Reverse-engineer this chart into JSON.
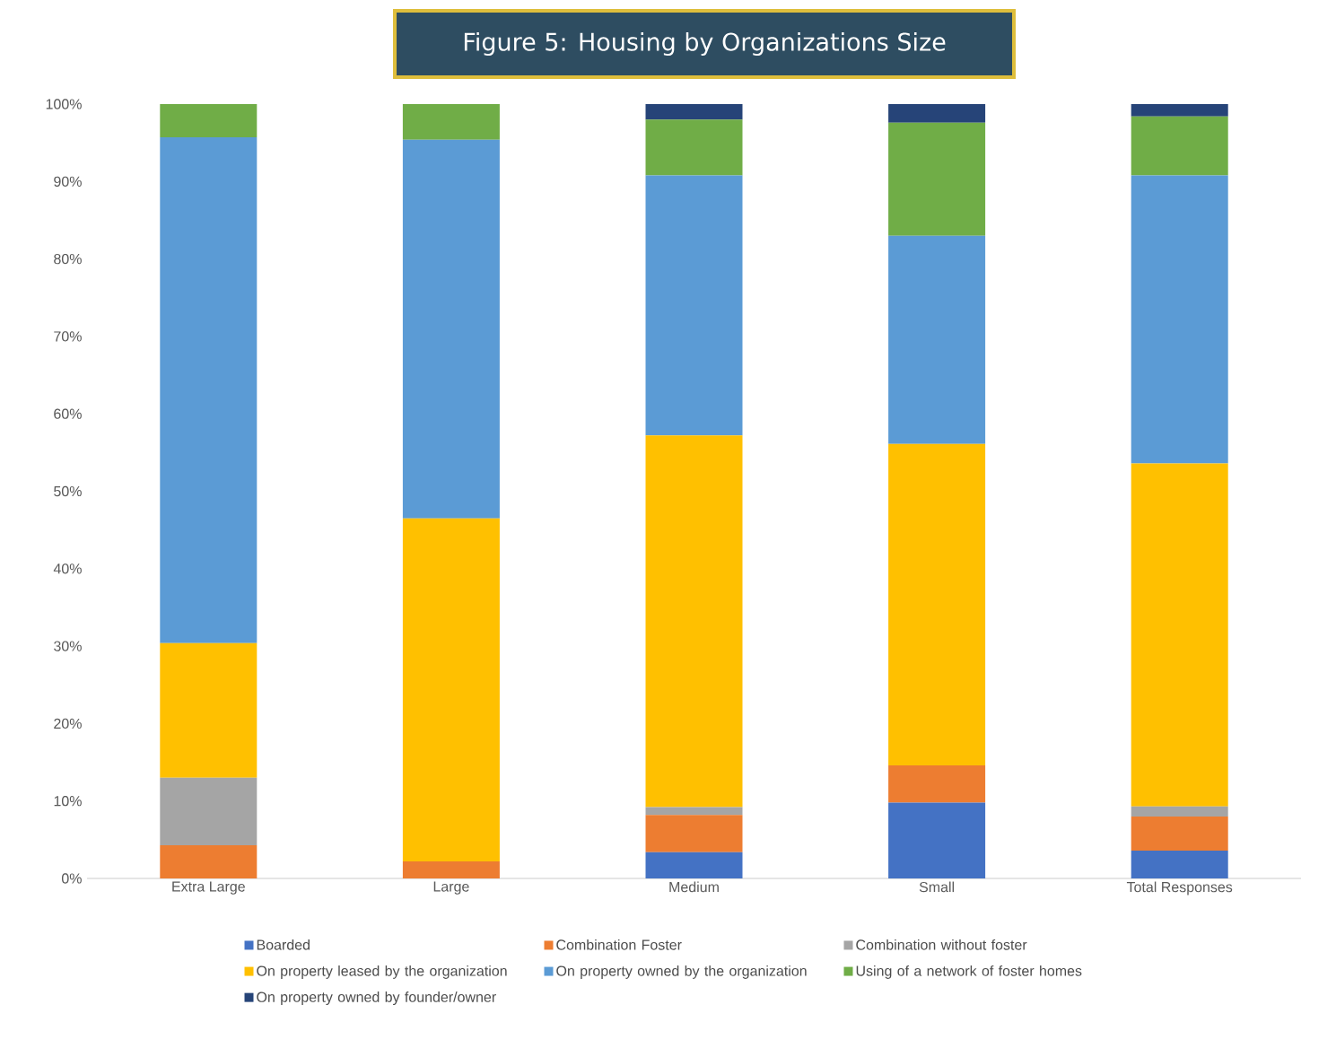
{
  "chart_data": {
    "type": "bar",
    "title": "Figure 5: Housing by Organizations Size",
    "stacked": true,
    "legend": "bottom",
    "categories": [
      "Extra Large",
      "Large",
      "Medium",
      "Small",
      "Total Responses"
    ],
    "series": [
      {
        "name": "Boarded",
        "color": "#4472c4",
        "values": [
          0,
          0,
          3.4,
          9.8,
          3.6
        ]
      },
      {
        "name": "Combination Foster",
        "color": "#ed7d31",
        "values": [
          4.3,
          2.2,
          4.8,
          4.8,
          4.4
        ]
      },
      {
        "name": "Combination without foster",
        "color": "#a5a5a5",
        "values": [
          8.7,
          0,
          1.0,
          0,
          1.3
        ]
      },
      {
        "name": "On property leased by the organization",
        "color": "#ffc000",
        "values": [
          17.4,
          44.3,
          48.0,
          41.5,
          44.3
        ]
      },
      {
        "name": "On property owned by the organization",
        "color": "#5b9bd5",
        "values": [
          65.3,
          48.9,
          33.6,
          26.9,
          37.2
        ]
      },
      {
        "name": "Using of a network of foster homes",
        "color": "#70ad47",
        "values": [
          4.3,
          4.6,
          7.2,
          14.6,
          7.6
        ]
      },
      {
        "name": "On property owned by founder/owner",
        "color": "#264478",
        "values": [
          0,
          0,
          2.0,
          2.4,
          1.6
        ]
      }
    ],
    "ylim": [
      0,
      100
    ],
    "yticks": [
      {
        "value": 0,
        "label": "0%"
      },
      {
        "value": 10,
        "label": "10%"
      },
      {
        "value": 20,
        "label": "20%"
      },
      {
        "value": 30,
        "label": "30%"
      },
      {
        "value": 40,
        "label": "40%"
      },
      {
        "value": 50,
        "label": "50%"
      },
      {
        "value": 60,
        "label": "60%"
      },
      {
        "value": 70,
        "label": "70%"
      },
      {
        "value": 80,
        "label": "80%"
      },
      {
        "value": 90,
        "label": "90%"
      },
      {
        "value": 100,
        "label": "100%"
      }
    ],
    "grid": false
  }
}
